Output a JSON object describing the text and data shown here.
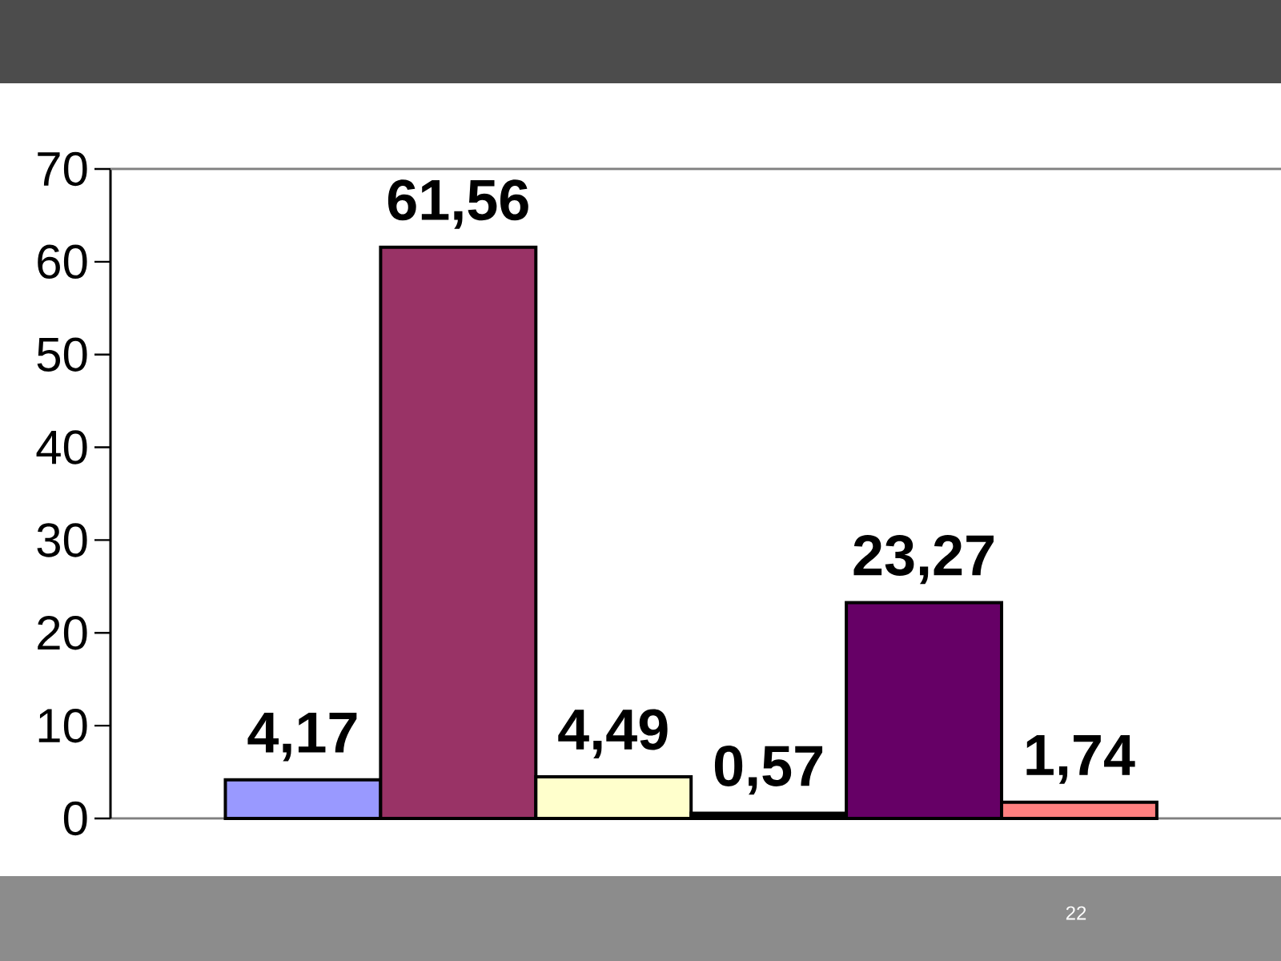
{
  "chart_data": {
    "type": "bar",
    "categories": [
      null,
      null,
      null,
      null,
      null,
      null
    ],
    "values": [
      4.17,
      61.56,
      4.49,
      0.57,
      23.27,
      1.74
    ],
    "colors": [
      "#9999ff",
      "#993366",
      "#ffffcc",
      "#000000",
      "#660066",
      "#ff8080"
    ],
    "value_labels": [
      "4,17",
      "61,56",
      "4,49",
      "0,57",
      "23,27",
      "1,74"
    ],
    "ylim": [
      0,
      70
    ],
    "yticks": [
      0,
      10,
      20,
      30,
      40,
      50,
      60,
      70
    ],
    "annotations": [
      "22"
    ]
  }
}
